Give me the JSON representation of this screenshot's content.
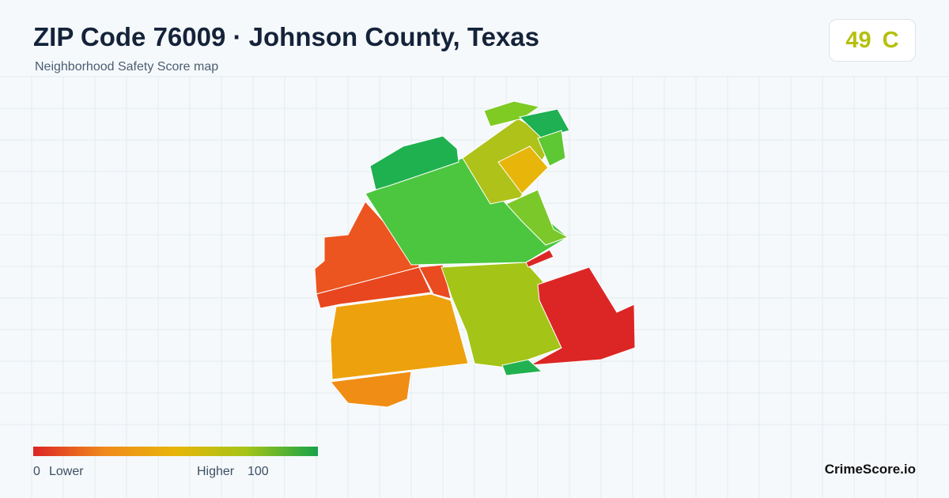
{
  "header": {
    "title": "ZIP Code 76009 · Johnson County, Texas",
    "subtitle": "Neighborhood Safety Score map"
  },
  "score": {
    "value": 49,
    "grade": "C"
  },
  "legend": {
    "min": 0,
    "min_label": "Lower",
    "max_label": "Higher",
    "max": 100
  },
  "brand": "CrimeScore.io"
}
